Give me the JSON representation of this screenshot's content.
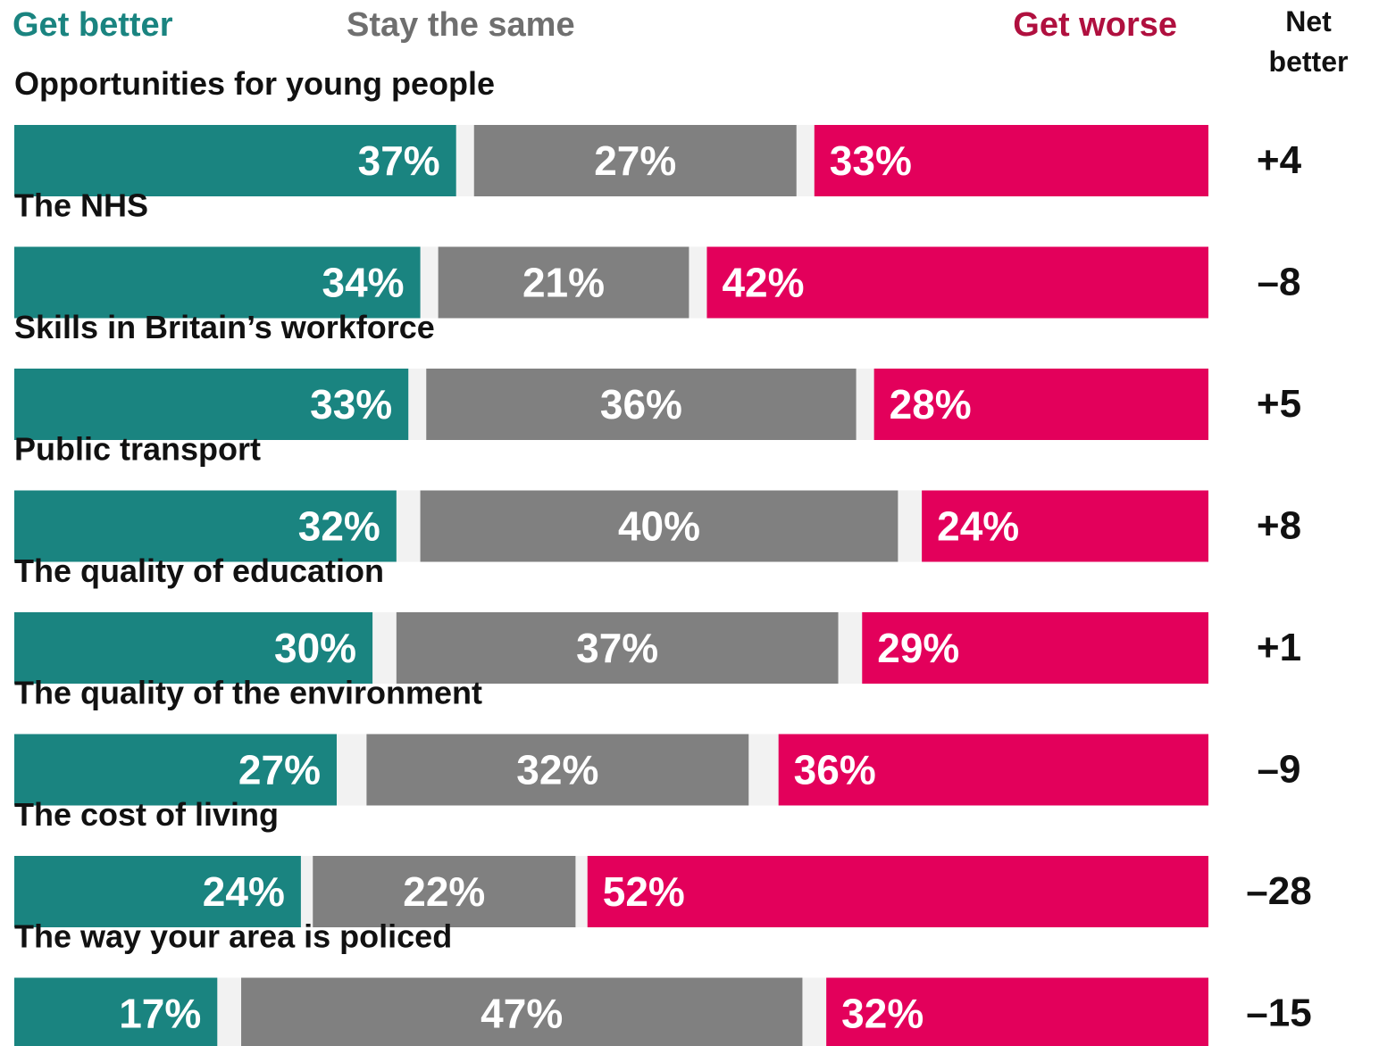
{
  "chart_data": {
    "type": "bar",
    "orientation": "horizontal",
    "stacked": true,
    "title": "",
    "xlabel": "",
    "ylabel": "",
    "grid": false,
    "legend_position": "top",
    "net_header": [
      "Net",
      "better"
    ],
    "categories": [
      "Opportunities for young people",
      "The NHS",
      "Skills in Britain’s workforce",
      "Public transport",
      "The quality of education",
      "The quality of the environment",
      "The cost of living",
      "The way your area is policed"
    ],
    "series": [
      {
        "name": "Get better",
        "color": "#1a8480",
        "values": [
          37,
          34,
          33,
          32,
          30,
          27,
          24,
          17
        ]
      },
      {
        "name": "Stay the same",
        "color": "#808080",
        "values": [
          27,
          21,
          36,
          40,
          37,
          32,
          22,
          47
        ]
      },
      {
        "name": "Get worse",
        "color": "#e3005b",
        "values": [
          33,
          42,
          28,
          24,
          29,
          36,
          52,
          32
        ]
      }
    ],
    "value_suffix": "%",
    "net_better": [
      "+4",
      "–8",
      "+5",
      "+8",
      "+1",
      "–9",
      "–28",
      "–15"
    ],
    "remainder_color": "#f2f2f2",
    "legend_colors": {
      "Get better": "#1a8480",
      "Stay the same": "#6f6f6f",
      "Get worse": "#b0103f"
    }
  }
}
